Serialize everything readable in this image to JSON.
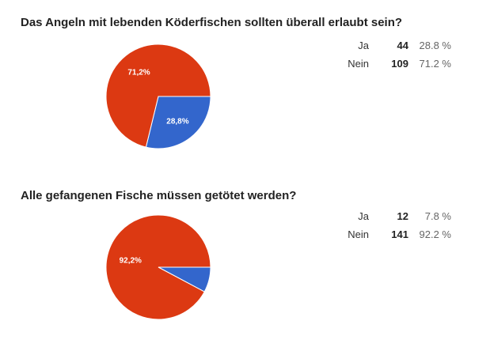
{
  "chart_data": [
    {
      "type": "pie",
      "title": "Das Angeln mit lebenden Köderfischen sollten überall erlaubt sein?",
      "slices": [
        {
          "label": "Ja",
          "count": "44",
          "percent": "28.8 %",
          "slice_label": "28,8%",
          "value": 28.8,
          "color": "#3366cc"
        },
        {
          "label": "Nein",
          "count": "109",
          "percent": "71.2 %",
          "slice_label": "71,2%",
          "value": 71.2,
          "color": "#dc3912"
        }
      ]
    },
    {
      "type": "pie",
      "title": "Alle gefangenen Fische müssen getötet werden?",
      "slices": [
        {
          "label": "Ja",
          "count": "12",
          "percent": "7.8 %",
          "slice_label": "",
          "value": 7.8,
          "color": "#3366cc"
        },
        {
          "label": "Nein",
          "count": "141",
          "percent": "92.2 %",
          "slice_label": "92,2%",
          "value": 92.2,
          "color": "#dc3912"
        }
      ]
    }
  ]
}
